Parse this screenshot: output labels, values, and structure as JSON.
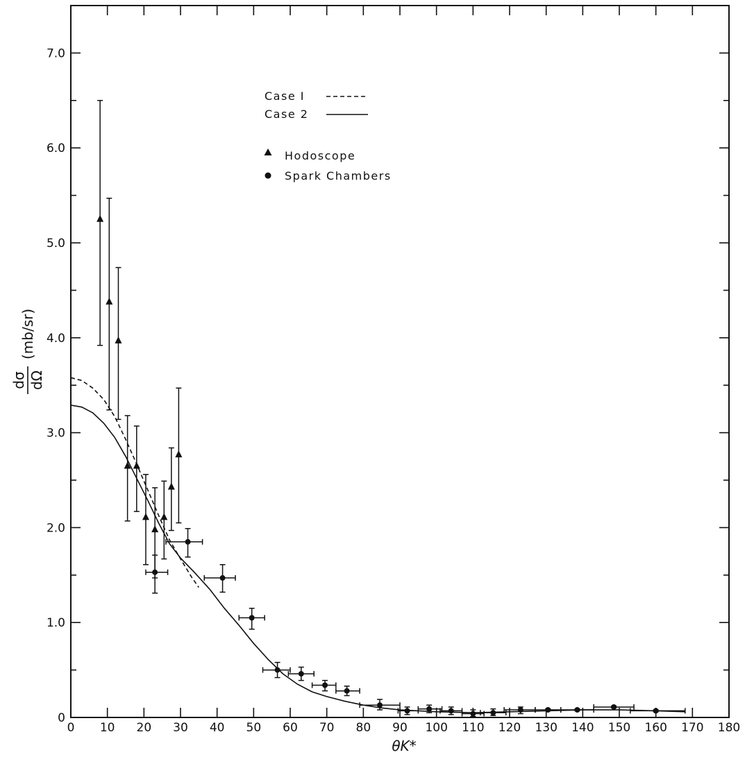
{
  "chart_data": {
    "type": "scatter",
    "title": "",
    "xlabel": "θK*",
    "ylabel_parts": {
      "numerator": "dσ",
      "denominator": "dΩ",
      "unit": "(mb/sr)"
    },
    "xlim": [
      0,
      180
    ],
    "ylim": [
      0,
      7.5
    ],
    "x_ticks": [
      0,
      10,
      20,
      30,
      40,
      50,
      60,
      70,
      80,
      90,
      100,
      110,
      120,
      130,
      140,
      150,
      160,
      170,
      180
    ],
    "x_tick_labels": [
      "0",
      "10",
      "20",
      "30",
      "40",
      "50",
      "60",
      "70",
      "80",
      "90",
      "100",
      "110",
      "120",
      "130",
      "140",
      "150",
      "160",
      "170",
      "180"
    ],
    "y_ticks": [
      1.0,
      2.0,
      3.0,
      4.0,
      5.0,
      6.0,
      7.0
    ],
    "y_tick_labels": [
      "1.0",
      "2.0",
      "3.0",
      "4.0",
      "5.0",
      "6.0",
      "7.0"
    ],
    "grid": false,
    "legend_placement": "top-left",
    "legend": {
      "lines": [
        {
          "label": "Case I",
          "style": "dashed"
        },
        {
          "label": "Case 2",
          "style": "solid"
        }
      ],
      "markers": [
        {
          "label": "Hodoscope",
          "marker": "triangle"
        },
        {
          "label": "Spark Chambers",
          "marker": "circle"
        }
      ]
    },
    "curves": [
      {
        "name": "Case I",
        "style": "dashed",
        "points": [
          [
            0,
            3.58
          ],
          [
            3,
            3.55
          ],
          [
            6,
            3.47
          ],
          [
            9,
            3.35
          ],
          [
            12,
            3.17
          ],
          [
            15,
            2.93
          ],
          [
            18,
            2.67
          ],
          [
            21,
            2.4
          ],
          [
            24,
            2.13
          ],
          [
            27,
            1.87
          ],
          [
            30,
            1.67
          ],
          [
            33,
            1.48
          ],
          [
            35,
            1.37
          ]
        ]
      },
      {
        "name": "Case 2",
        "style": "solid",
        "points": [
          [
            0,
            3.29
          ],
          [
            3,
            3.27
          ],
          [
            6,
            3.21
          ],
          [
            9,
            3.1
          ],
          [
            12,
            2.95
          ],
          [
            15,
            2.75
          ],
          [
            18,
            2.52
          ],
          [
            21,
            2.29
          ],
          [
            24,
            2.05
          ],
          [
            27,
            1.83
          ],
          [
            30,
            1.68
          ],
          [
            34,
            1.52
          ],
          [
            38,
            1.35
          ],
          [
            42,
            1.15
          ],
          [
            46,
            0.97
          ],
          [
            50,
            0.78
          ],
          [
            54,
            0.61
          ],
          [
            58,
            0.46
          ],
          [
            62,
            0.35
          ],
          [
            66,
            0.27
          ],
          [
            70,
            0.22
          ],
          [
            75,
            0.17
          ],
          [
            80,
            0.13
          ],
          [
            85,
            0.1
          ],
          [
            90,
            0.08
          ],
          [
            100,
            0.06
          ],
          [
            110,
            0.05
          ],
          [
            120,
            0.06
          ],
          [
            130,
            0.07
          ],
          [
            140,
            0.08
          ],
          [
            150,
            0.08
          ],
          [
            160,
            0.07
          ],
          [
            168,
            0.06
          ]
        ]
      }
    ],
    "series": [
      {
        "name": "Hodoscope",
        "marker": "triangle",
        "points": [
          {
            "x": 8,
            "y": 5.25,
            "ylo": 3.92,
            "yhi": 6.5
          },
          {
            "x": 10.5,
            "y": 4.38,
            "ylo": 3.24,
            "yhi": 5.47
          },
          {
            "x": 13,
            "y": 3.97,
            "ylo": 3.14,
            "yhi": 4.74
          },
          {
            "x": 15.5,
            "y": 2.65,
            "ylo": 2.07,
            "yhi": 3.18
          },
          {
            "x": 18,
            "y": 2.65,
            "ylo": 2.17,
            "yhi": 3.07
          },
          {
            "x": 20.5,
            "y": 2.11,
            "ylo": 1.61,
            "yhi": 2.56
          },
          {
            "x": 23,
            "y": 1.98,
            "ylo": 1.47,
            "yhi": 2.42
          },
          {
            "x": 25.5,
            "y": 2.11,
            "ylo": 1.67,
            "yhi": 2.49
          },
          {
            "x": 27.5,
            "y": 2.43,
            "ylo": 1.97,
            "yhi": 2.84
          },
          {
            "x": 29.5,
            "y": 2.77,
            "ylo": 2.05,
            "yhi": 3.47
          }
        ]
      },
      {
        "name": "Spark Chambers",
        "marker": "circle",
        "points": [
          {
            "x": 23,
            "y": 1.53,
            "xlo": 20.5,
            "xhi": 26.5,
            "ylo": 1.31,
            "yhi": 1.71
          },
          {
            "x": 32,
            "y": 1.85,
            "xlo": 26,
            "xhi": 36,
            "ylo": 1.69,
            "yhi": 1.99
          },
          {
            "x": 41.5,
            "y": 1.47,
            "xlo": 36.5,
            "xhi": 45,
            "ylo": 1.32,
            "yhi": 1.61
          },
          {
            "x": 49.5,
            "y": 1.05,
            "xlo": 46,
            "xhi": 53,
            "ylo": 0.93,
            "yhi": 1.15
          },
          {
            "x": 56.5,
            "y": 0.5,
            "xlo": 52.5,
            "xhi": 60,
            "ylo": 0.42,
            "yhi": 0.58
          },
          {
            "x": 63,
            "y": 0.46,
            "xlo": 59.5,
            "xhi": 66.5,
            "ylo": 0.39,
            "yhi": 0.53
          },
          {
            "x": 69.5,
            "y": 0.34,
            "xlo": 66,
            "xhi": 72.5,
            "ylo": 0.28,
            "yhi": 0.39
          },
          {
            "x": 75.5,
            "y": 0.28,
            "xlo": 72.5,
            "xhi": 79,
            "ylo": 0.23,
            "yhi": 0.33
          },
          {
            "x": 84.5,
            "y": 0.13,
            "xlo": 79,
            "xhi": 90,
            "ylo": 0.08,
            "yhi": 0.19
          },
          {
            "x": 92,
            "y": 0.07,
            "xlo": 89.5,
            "xhi": 95,
            "ylo": 0.03,
            "yhi": 0.11
          },
          {
            "x": 98,
            "y": 0.09,
            "xlo": 95,
            "xhi": 101.5,
            "ylo": 0.05,
            "yhi": 0.13
          },
          {
            "x": 104,
            "y": 0.07,
            "xlo": 101,
            "xhi": 107,
            "ylo": 0.03,
            "yhi": 0.11
          },
          {
            "x": 110,
            "y": 0.04,
            "xlo": 107,
            "xhi": 113,
            "ylo": 0.01,
            "yhi": 0.08
          },
          {
            "x": 115.5,
            "y": 0.05,
            "xlo": 112,
            "xhi": 119,
            "ylo": 0.02,
            "yhi": 0.09
          },
          {
            "x": 123,
            "y": 0.08,
            "xlo": 118.5,
            "xhi": 127,
            "ylo": 0.04,
            "yhi": 0.11
          },
          {
            "x": 130.5,
            "y": 0.08,
            "xlo": 127,
            "xhi": 134,
            "ylo": 0.07,
            "yhi": 0.09
          },
          {
            "x": 138.5,
            "y": 0.08,
            "xlo": 134,
            "xhi": 143,
            "ylo": 0.07,
            "yhi": 0.09
          },
          {
            "x": 148.5,
            "y": 0.11,
            "xlo": 143,
            "xhi": 154,
            "ylo": 0.1,
            "yhi": 0.12
          },
          {
            "x": 160,
            "y": 0.07,
            "xlo": 153,
            "xhi": 168,
            "ylo": 0.06,
            "yhi": 0.08
          }
        ]
      }
    ]
  }
}
